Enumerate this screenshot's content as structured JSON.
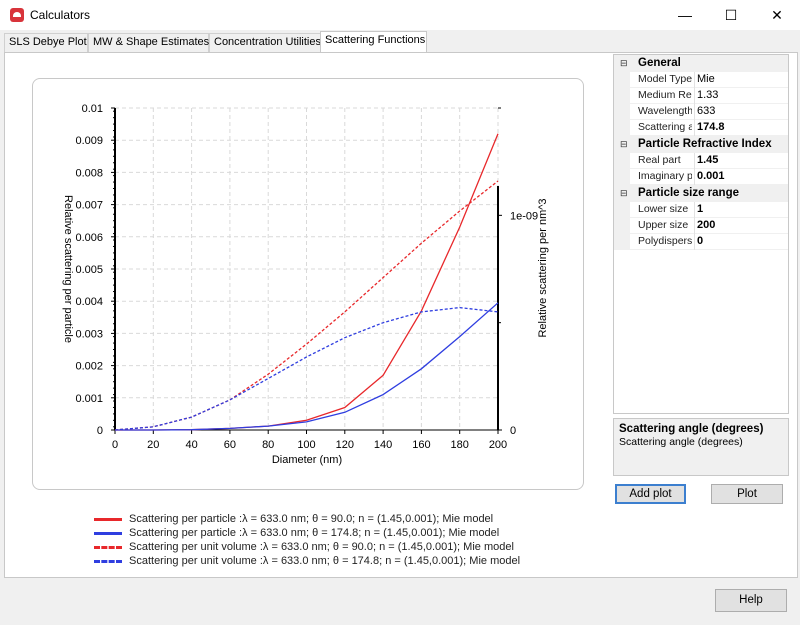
{
  "window": {
    "title": "Calculators",
    "minimize": "—",
    "maximize": "☐",
    "close": "✕"
  },
  "tabs": [
    {
      "label": "SLS Debye Plot"
    },
    {
      "label": "MW & Shape Estimates"
    },
    {
      "label": "Concentration Utilities"
    },
    {
      "label": "Scattering Functions"
    }
  ],
  "chart_data": {
    "type": "line",
    "xlabel": "Diameter (nm)",
    "ylabel_left": "Relative scattering per particle",
    "ylabel_right": "Relative scattering per nm^3",
    "xlim": [
      0,
      200
    ],
    "ylim_left": [
      0,
      0.01
    ],
    "ylim_right": [
      0,
      1.5e-09
    ],
    "x_ticks": [
      "0",
      "20",
      "40",
      "60",
      "80",
      "100",
      "120",
      "140",
      "160",
      "180",
      "200"
    ],
    "y_left_ticks": [
      "0",
      "0.001",
      "0.002",
      "0.003",
      "0.004",
      "0.005",
      "0.006",
      "0.007",
      "0.008",
      "0.009",
      "0.01"
    ],
    "y_right_ticks": [
      "0",
      "1e-09"
    ],
    "grid": true,
    "x": [
      0,
      20,
      40,
      60,
      80,
      100,
      120,
      140,
      160,
      180,
      200
    ],
    "series": [
      {
        "name": "Scattering per particle :λ = 633.0 nm; θ = 90.0; n = (1.45,0.001); Mie model",
        "axis": "left",
        "color": "#e8282b",
        "dash": false,
        "values": [
          0,
          1e-06,
          1e-05,
          5e-05,
          0.00012,
          0.0003,
          0.0007,
          0.0017,
          0.0037,
          0.0063,
          0.0092
        ]
      },
      {
        "name": "Scattering per particle :λ = 633.0 nm; θ = 174.8; n = (1.45,0.001); Mie model",
        "axis": "left",
        "color": "#2f3ee0",
        "dash": false,
        "values": [
          0,
          1e-06,
          1e-05,
          5e-05,
          0.00012,
          0.00025,
          0.00055,
          0.0011,
          0.0019,
          0.0029,
          0.00395
        ]
      },
      {
        "name": "Scattering per unit volume :λ = 633.0 nm; θ = 90.0; n = (1.45,0.001); Mie model",
        "axis": "right",
        "color": "#e8282b",
        "dash": true,
        "values": [
          0,
          1.5e-11,
          6e-11,
          1.4e-10,
          2.6e-10,
          4e-10,
          5.5e-10,
          7.1e-10,
          8.7e-10,
          1.02e-09,
          1.16e-09
        ]
      },
      {
        "name": "Scattering per unit volume :λ = 633.0 nm; θ = 174.8; n = (1.45,0.001); Mie model",
        "axis": "right",
        "color": "#2f3ee0",
        "dash": true,
        "values": [
          0,
          1.5e-11,
          6e-11,
          1.4e-10,
          2.4e-10,
          3.4e-10,
          4.3e-10,
          5e-10,
          5.5e-10,
          5.7e-10,
          5.5e-10
        ]
      }
    ]
  },
  "properties": [
    {
      "category": "General",
      "rows": [
        {
          "name": "Model Type",
          "value": "Mie",
          "bold": false
        },
        {
          "name": "Medium Re",
          "value": "1.33",
          "bold": false
        },
        {
          "name": "Wavelength",
          "value": "633",
          "bold": false
        },
        {
          "name": "Scattering a",
          "value": "174.8",
          "bold": true
        }
      ]
    },
    {
      "category": "Particle Refractive Index",
      "rows": [
        {
          "name": "Real part",
          "value": "1.45",
          "bold": true
        },
        {
          "name": "Imaginary p",
          "value": "0.001",
          "bold": true
        }
      ]
    },
    {
      "category": "Particle size range",
      "rows": [
        {
          "name": "Lower size",
          "value": "1",
          "bold": true
        },
        {
          "name": "Upper size",
          "value": "200",
          "bold": true
        },
        {
          "name": "Polydispersi",
          "value": "0",
          "bold": true
        }
      ]
    }
  ],
  "help": {
    "title": "Scattering angle (degrees)",
    "description": "Scattering angle (degrees)"
  },
  "buttons": {
    "add_plot": "Add plot",
    "plot": "Plot",
    "help": "Help"
  },
  "icons": {
    "collapse": "minus-box-icon",
    "app": "calculator-app-icon"
  }
}
